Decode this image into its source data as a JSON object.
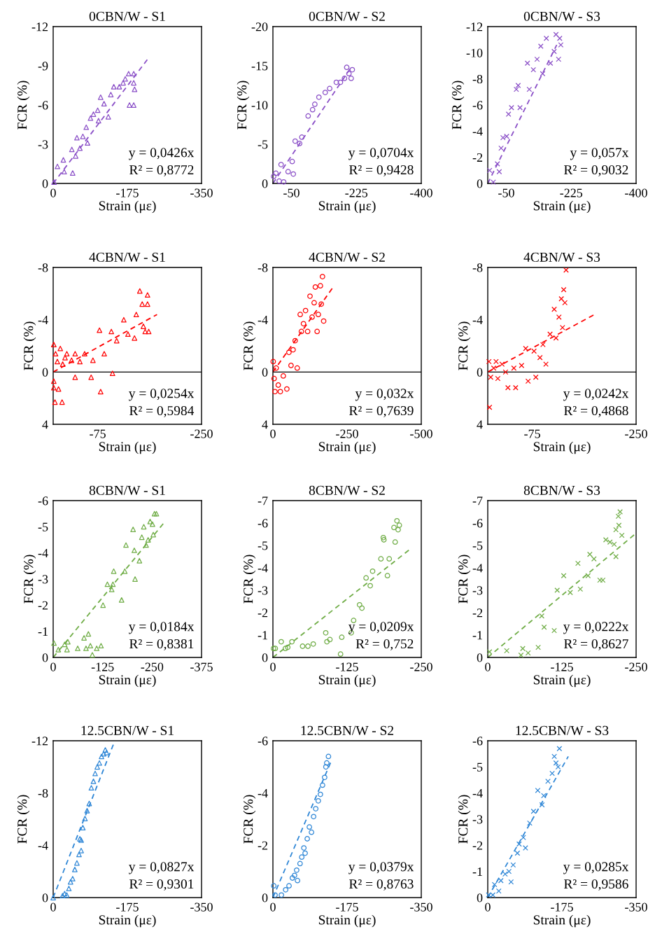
{
  "chart_data": [
    {
      "type": "scatter",
      "title": "0CBN/W - S1",
      "xlabel": "Strain (με)",
      "ylabel": "FCR (%)",
      "xlim": [
        0,
        -350
      ],
      "xticks": [
        0,
        -175,
        -350
      ],
      "ylim": [
        0,
        -12
      ],
      "yticks": [
        0,
        -3,
        -6,
        -9,
        -12
      ],
      "grid": false,
      "series": [
        {
          "type": "scatter",
          "marker": "triangle",
          "color": "#8a4fc7",
          "x": [
            -2,
            -10,
            -24,
            -26,
            -44,
            -46,
            -53,
            -56,
            -63,
            -70,
            -78,
            -81,
            -88,
            -95,
            -105,
            -107,
            -112,
            -120,
            -130,
            -136,
            -143,
            -156,
            -165,
            -170,
            -178,
            -180,
            -190,
            -190,
            -190,
            -192
          ],
          "values": [
            -0.1,
            -1.3,
            -1.8,
            -0.9,
            -2.6,
            -0.8,
            -2.1,
            -3.5,
            -2.7,
            -3.6,
            -4.3,
            -3.1,
            -5.0,
            -5.3,
            -5.6,
            -4.8,
            -6.6,
            -6.1,
            -5.1,
            -6.8,
            -7.4,
            -7.4,
            -7.7,
            -8.0,
            -8.4,
            -6.0,
            -7.7,
            -6.0,
            -8.4,
            -7.2
          ]
        },
        {
          "type": "line",
          "line_style": "dashed",
          "color": "#8a4fc7",
          "x": [
            0,
            -225
          ],
          "values": [
            0,
            -9.6
          ]
        }
      ],
      "annotations": [
        "y = 0,0426x",
        "R² = 0,8772"
      ]
    },
    {
      "type": "scatter",
      "title": "0CBN/W - S2",
      "xlabel": "Strain (με)",
      "ylabel": "FCR (%)",
      "xlim": [
        0,
        -400
      ],
      "xticks": [
        -50,
        -225,
        -400
      ],
      "ylim": [
        0,
        -20
      ],
      "yticks": [
        0,
        -5,
        -10,
        -15,
        -20
      ],
      "grid": false,
      "series": [
        {
          "type": "scatter",
          "marker": "circle",
          "color": "#8a4fc7",
          "x": [
            -2,
            -8,
            -17,
            -22,
            -29,
            -41,
            -52,
            -55,
            -60,
            -72,
            -78,
            -95,
            -107,
            -113,
            -124,
            -141,
            -153,
            -171,
            -182,
            -193,
            -199,
            -205,
            -211,
            -214
          ],
          "values": [
            -0.9,
            -1.3,
            -0.3,
            -2.4,
            -0.2,
            -1.5,
            -2.8,
            -1.2,
            -5.4,
            -5.1,
            -5.9,
            -8.6,
            -9.4,
            -10.1,
            -11.0,
            -11.6,
            -12.1,
            -12.9,
            -12.9,
            -13.4,
            -14.8,
            -14.0,
            -13.4,
            -14.5
          ]
        },
        {
          "type": "line",
          "line_style": "dashed",
          "color": "#8a4fc7",
          "x": [
            0,
            -212
          ],
          "values": [
            0,
            -14.9
          ]
        }
      ],
      "annotations": [
        "y = 0,0704x",
        "R² = 0,9428"
      ]
    },
    {
      "type": "scatter",
      "title": "0CBN/W - S3",
      "xlabel": "Strain (με)",
      "ylabel": "FCR (%)",
      "xlim": [
        0,
        -400
      ],
      "xticks": [
        -50,
        -225,
        -400
      ],
      "ylim": [
        0,
        -12
      ],
      "yticks": [
        0,
        -2,
        -4,
        -6,
        -8,
        -10,
        -12
      ],
      "grid": false,
      "series": [
        {
          "type": "scatter",
          "marker": "cross",
          "color": "#8a4fc7",
          "x": [
            -5,
            -15,
            -26,
            -31,
            -36,
            -41,
            -51,
            -56,
            -64,
            -77,
            -82,
            -87,
            -107,
            -112,
            -123,
            -133,
            -143,
            -148,
            -158,
            -169,
            -179,
            -184,
            -191,
            -194,
            -197
          ],
          "values": [
            -1.0,
            -0.1,
            -1.5,
            -0.9,
            -2.7,
            -3.5,
            -3.6,
            -5.3,
            -5.8,
            -7.2,
            -7.5,
            -5.8,
            -9.2,
            -7.2,
            -8.7,
            -9.5,
            -10.5,
            -8.4,
            -11.1,
            -9.2,
            -10.1,
            -11.4,
            -9.5,
            -11.1,
            -10.6
          ]
        },
        {
          "type": "line",
          "line_style": "dashed",
          "color": "#8a4fc7",
          "x": [
            0,
            -186
          ],
          "values": [
            0,
            -10.6
          ]
        }
      ],
      "annotations": [
        "y = 0,057x",
        "R² = 0,9032"
      ]
    },
    {
      "type": "scatter",
      "title": "4CBN/W - S1",
      "xlabel": "Strain (με)",
      "ylabel": "FCR (%)",
      "xlim": [
        0,
        -250
      ],
      "xticks": [
        -75,
        -250
      ],
      "ylim": [
        4,
        -8
      ],
      "yticks": [
        4,
        0,
        -4,
        -8
      ],
      "grid": false,
      "ref_lines": [
        {
          "axis": "y",
          "value": 0,
          "color": "#000000"
        }
      ],
      "series": [
        {
          "type": "scatter",
          "marker": "triangle",
          "color": "#ff0000",
          "x": [
            -1,
            -1,
            -1,
            -3,
            -4,
            -7,
            -9,
            -12,
            -15,
            -16,
            -20,
            -23,
            -31,
            -37,
            -37,
            -45,
            -53,
            -64,
            -67,
            -78,
            -80,
            -86,
            -98,
            -100,
            -107,
            -119,
            -126,
            -137,
            -140,
            -146,
            -150,
            -152,
            -155,
            -159,
            -159,
            -161
          ],
          "values": [
            -2.1,
            0.7,
            1.2,
            2.3,
            -1.4,
            -0.8,
            1.3,
            -1.8,
            2.3,
            -0.6,
            -1.1,
            -1.4,
            -0.9,
            -1.4,
            0.4,
            -0.8,
            -1.4,
            0.4,
            -0.9,
            -3.2,
            1.5,
            -1.4,
            -3.1,
            0.1,
            -2.4,
            -4.0,
            -2.9,
            -2.6,
            -4.4,
            -6.2,
            -5.2,
            -3.5,
            -3.1,
            -5.9,
            -5.2,
            -3.1
          ]
        },
        {
          "type": "line",
          "line_style": "dashed",
          "color": "#ff0000",
          "x": [
            0,
            -175
          ],
          "values": [
            0,
            -4.4
          ]
        }
      ],
      "annotations": [
        "y = 0,0254x",
        "R² = 0,5984"
      ]
    },
    {
      "type": "scatter",
      "title": "4CBN/W - S2",
      "xlabel": "Strain (με)",
      "ylabel": "FCR (%)",
      "xlim": [
        0,
        -500
      ],
      "xticks": [
        0,
        -250,
        -500
      ],
      "ylim": [
        4,
        -8
      ],
      "yticks": [
        4,
        0,
        -4,
        -8
      ],
      "grid": false,
      "ref_lines": [
        {
          "axis": "y",
          "value": 0,
          "color": "#000000"
        }
      ],
      "series": [
        {
          "type": "scatter",
          "marker": "circle",
          "color": "#ff0000",
          "x": [
            -1,
            -4,
            -7,
            -11,
            -18,
            -25,
            -35,
            -47,
            -54,
            -61,
            -68,
            -75,
            -82,
            -92,
            -96,
            -103,
            -110,
            -117,
            -125,
            -132,
            -139,
            -143,
            -149,
            -153,
            -160,
            -163,
            -167,
            -171
          ],
          "values": [
            -0.8,
            0.5,
            1.5,
            -0.3,
            1.0,
            1.5,
            0.3,
            1.3,
            -1.5,
            -0.5,
            -1.7,
            -2.4,
            -0.3,
            -4.4,
            -3.1,
            -3.7,
            -4.7,
            -3.1,
            -5.8,
            -4.2,
            -5.3,
            -6.5,
            -3.1,
            -4.4,
            -6.6,
            -5.2,
            -7.3,
            -3.9
          ]
        },
        {
          "type": "line",
          "line_style": "dashed",
          "color": "#ff0000",
          "x": [
            0,
            -200
          ],
          "values": [
            0,
            -6.4
          ]
        }
      ],
      "annotations": [
        "y = 0,032x",
        "R² = 0,7639"
      ]
    },
    {
      "type": "scatter",
      "title": "4CBN/W - S3",
      "xlabel": "Strain (με)",
      "ylabel": "FCR (%)",
      "xlim": [
        0,
        -250
      ],
      "xticks": [
        -75,
        -250
      ],
      "ylim": [
        4,
        -8
      ],
      "yticks": [
        4,
        0,
        -4,
        -8
      ],
      "grid": false,
      "ref_lines": [
        {
          "axis": "y",
          "value": 0,
          "color": "#000000"
        }
      ],
      "series": [
        {
          "type": "scatter",
          "marker": "cross",
          "color": "#ff0000",
          "x": [
            -2,
            -3,
            -5,
            -10,
            -14,
            -17,
            -24,
            -30,
            -34,
            -44,
            -47,
            -57,
            -64,
            -68,
            -78,
            -81,
            -88,
            -93,
            -98,
            -105,
            -112,
            -115,
            -120,
            -124,
            -126,
            -128,
            -130,
            -132
          ],
          "values": [
            -0.8,
            2.7,
            0.4,
            -0.3,
            -0.8,
            0.5,
            -0.6,
            0.0,
            1.2,
            -0.3,
            1.2,
            -0.5,
            -1.8,
            0.7,
            -1.6,
            0.4,
            -1.1,
            -2.1,
            -0.6,
            -2.9,
            -4.8,
            -2.6,
            -4.2,
            -5.6,
            -3.4,
            -6.3,
            -5.3,
            -7.8
          ]
        },
        {
          "type": "line",
          "line_style": "dashed",
          "color": "#ff0000",
          "x": [
            0,
            -180
          ],
          "values": [
            0,
            -4.4
          ]
        }
      ],
      "annotations": [
        "y = 0,0242x",
        "R² = 0,4868"
      ]
    },
    {
      "type": "scatter",
      "title": "8CBN/W - S1",
      "xlabel": "Strain (με)",
      "ylabel": "FCR (%)",
      "xlim": [
        0,
        -375
      ],
      "xticks": [
        0,
        -125,
        -250,
        -375
      ],
      "ylim": [
        0,
        -6
      ],
      "yticks": [
        0,
        -1,
        -2,
        -3,
        -4,
        -5,
        -6
      ],
      "grid": false,
      "series": [
        {
          "type": "scatter",
          "marker": "triangle",
          "color": "#70ad47",
          "x": [
            -2,
            -13,
            -29,
            -35,
            -37,
            -62,
            -78,
            -83,
            -89,
            -94,
            -99,
            -110,
            -121,
            -126,
            -137,
            -148,
            -153,
            -151,
            -173,
            -181,
            -184,
            -202,
            -205,
            -207,
            -218,
            -224,
            -229,
            -235,
            -240,
            -245,
            -251,
            -253,
            -256,
            -261
          ],
          "values": [
            -0.55,
            -0.3,
            -0.5,
            -0.3,
            -0.6,
            -0.35,
            -0.75,
            -0.35,
            -0.9,
            -0.45,
            -0.1,
            -0.35,
            -0.45,
            -2.0,
            -2.8,
            -2.6,
            -3.3,
            -2.8,
            -2.2,
            -3.3,
            -4.3,
            -4.9,
            -4.1,
            -3.0,
            -3.7,
            -4.6,
            -5.0,
            -4.3,
            -4.5,
            -5.2,
            -5.1,
            -4.7,
            -5.5,
            -5.5
          ]
        },
        {
          "type": "line",
          "line_style": "dashed",
          "color": "#70ad47",
          "x": [
            0,
            -280
          ],
          "values": [
            0,
            -5.15
          ]
        }
      ],
      "annotations": [
        "y = 0,0184x",
        "R² = 0,8381"
      ]
    },
    {
      "type": "scatter",
      "title": "8CBN/W - S2",
      "xlabel": "Strain (με)",
      "ylabel": "FCR (%)",
      "xlim": [
        0,
        -250
      ],
      "xticks": [
        0,
        -125,
        -250
      ],
      "ylim": [
        0,
        -7
      ],
      "yticks": [
        0,
        -1,
        -2,
        -3,
        -4,
        -5,
        -6,
        -7
      ],
      "grid": false,
      "series": [
        {
          "type": "scatter",
          "marker": "circle",
          "color": "#70ad47",
          "x": [
            -1,
            -4,
            -14,
            -21,
            -25,
            -32,
            -50,
            -59,
            -68,
            -89,
            -91,
            -96,
            -114,
            -116,
            -132,
            -136,
            -146,
            -150,
            -157,
            -164,
            -168,
            -182,
            -186,
            -187,
            -193,
            -196,
            -204,
            -206,
            -209,
            -211,
            -213
          ],
          "values": [
            -0.4,
            -0.4,
            -0.7,
            -0.4,
            -0.45,
            -0.7,
            -0.5,
            -0.5,
            -0.6,
            -1.1,
            -0.7,
            -0.8,
            -0.15,
            -0.9,
            -1.1,
            -1.65,
            -2.35,
            -2.2,
            -3.55,
            -3.2,
            -3.85,
            -4.4,
            -5.35,
            -5.25,
            -3.65,
            -4.4,
            -5.8,
            -5.15,
            -6.1,
            -5.7,
            -5.9
          ]
        },
        {
          "type": "line",
          "line_style": "dashed",
          "color": "#70ad47",
          "x": [
            0,
            -233
          ],
          "values": [
            0,
            -4.87
          ]
        }
      ],
      "annotations": [
        "y = 0,0209x",
        "R² = 0,752"
      ]
    },
    {
      "type": "scatter",
      "title": "8CBN/W - S3",
      "xlabel": "Strain (με)",
      "ylabel": "FCR (%)",
      "xlim": [
        0,
        -250
      ],
      "xticks": [
        0,
        -125,
        -250
      ],
      "ylim": [
        0,
        -7
      ],
      "yticks": [
        0,
        -1,
        -2,
        -3,
        -4,
        -5,
        -6,
        -7
      ],
      "grid": false,
      "series": [
        {
          "type": "scatter",
          "marker": "cross",
          "color": "#70ad47",
          "x": [
            -3,
            -32,
            -56,
            -59,
            -68,
            -85,
            -91,
            -95,
            -112,
            -117,
            -128,
            -139,
            -152,
            -156,
            -169,
            -172,
            -179,
            -189,
            -194,
            -199,
            -206,
            -213,
            -216,
            -216,
            -220,
            -221,
            -223,
            -226
          ],
          "values": [
            -0.25,
            -0.3,
            -0.1,
            -0.4,
            -0.2,
            -0.45,
            -1.85,
            -1.35,
            -1.2,
            -3.0,
            -3.65,
            -2.9,
            -4.2,
            -3.05,
            -3.65,
            -4.6,
            -4.4,
            -3.45,
            -3.45,
            -5.25,
            -5.15,
            -5.05,
            -4.5,
            -5.7,
            -6.3,
            -5.9,
            -6.5,
            -5.45
          ]
        },
        {
          "type": "line",
          "line_style": "dashed",
          "color": "#70ad47",
          "x": [
            0,
            -248
          ],
          "values": [
            0,
            -5.5
          ]
        }
      ],
      "annotations": [
        "y = 0,0222x",
        "R² = 0,8627"
      ]
    },
    {
      "type": "scatter",
      "title": "12.5CBN/W - S1",
      "xlabel": "Strain (με)",
      "ylabel": "FCR (%)",
      "xlim": [
        0,
        -350
      ],
      "xticks": [
        0,
        -175,
        -350
      ],
      "ylim": [
        0,
        -12
      ],
      "yticks": [
        0,
        -4,
        -8,
        -12
      ],
      "grid": false,
      "series": [
        {
          "type": "scatter",
          "marker": "triangle",
          "color": "#2e86d6",
          "x": [
            0,
            -22,
            -27,
            -32,
            -37,
            -41,
            -46,
            -51,
            -56,
            -61,
            -66,
            -63,
            -66,
            -70,
            -75,
            -80,
            -85,
            -90,
            -95,
            -99,
            -104,
            -109,
            -114,
            -119,
            -123,
            -126
          ],
          "values": [
            0,
            -0.15,
            -0.3,
            -0.2,
            -0.7,
            -1.2,
            -1.45,
            -2.15,
            -2.65,
            -3.3,
            -3.6,
            -4.5,
            -4.4,
            -5.35,
            -6.05,
            -6.65,
            -7.2,
            -8.4,
            -8.9,
            -9.5,
            -10.0,
            -10.3,
            -10.8,
            -11.0,
            -11.3,
            -11.1
          ]
        },
        {
          "type": "line",
          "line_style": "dashed",
          "color": "#2e86d6",
          "x": [
            0,
            -143
          ],
          "values": [
            0,
            -11.8
          ]
        }
      ],
      "annotations": [
        "y = 0,0827x",
        "R² = 0,9301"
      ]
    },
    {
      "type": "scatter",
      "title": "12.5CBN/W - S2",
      "xlabel": "Strain (με)",
      "ylabel": "FCR (%)",
      "xlim": [
        0,
        -350
      ],
      "xticks": [
        0,
        -175,
        -350
      ],
      "ylim": [
        0,
        -6
      ],
      "yticks": [
        0,
        -2,
        -4,
        -6
      ],
      "grid": false,
      "series": [
        {
          "type": "scatter",
          "marker": "circle",
          "color": "#2e86d6",
          "x": [
            -2,
            -5,
            -20,
            -30,
            -38,
            -46,
            -51,
            -56,
            -58,
            -64,
            -68,
            -73,
            -76,
            -81,
            -86,
            -91,
            -96,
            -101,
            -107,
            -112,
            -117,
            -122,
            -125,
            -127,
            -131
          ],
          "values": [
            -0.45,
            -0.1,
            -0.1,
            -0.3,
            -0.45,
            -0.75,
            -0.85,
            -1.05,
            -0.65,
            -1.3,
            -1.55,
            -1.9,
            -1.7,
            -2.25,
            -2.7,
            -2.5,
            -3.1,
            -3.4,
            -3.7,
            -3.95,
            -4.3,
            -4.6,
            -5.0,
            -5.15,
            -5.4
          ]
        },
        {
          "type": "line",
          "line_style": "dashed",
          "color": "#2e86d6",
          "x": [
            0,
            -137
          ],
          "values": [
            0,
            -5.2
          ]
        }
      ],
      "annotations": [
        "y = 0,0379x",
        "R² = 0,8763"
      ]
    },
    {
      "type": "scatter",
      "title": "12.5CBN/W - S3",
      "xlabel": "Strain (με)",
      "ylabel": "FCR (%)",
      "xlim": [
        0,
        -350
      ],
      "xticks": [
        0,
        -175,
        -350
      ],
      "ylim": [
        0,
        -6
      ],
      "yticks": [
        0,
        -1,
        -2,
        -3,
        -4,
        -5,
        -6
      ],
      "grid": false,
      "series": [
        {
          "type": "scatter",
          "marker": "cross",
          "color": "#2e86d6",
          "x": [
            -2,
            -12,
            -16,
            -26,
            -31,
            -41,
            -50,
            -55,
            -60,
            -70,
            -74,
            -84,
            -89,
            -99,
            -108,
            -118,
            -128,
            -132,
            -142,
            -152,
            -157,
            -161,
            -166,
            -169
          ],
          "values": [
            -0.1,
            -0.1,
            -0.5,
            -0.25,
            -0.65,
            -0.9,
            -1.0,
            -0.6,
            -1.25,
            -1.7,
            -2.05,
            -2.3,
            -1.9,
            -2.85,
            -3.3,
            -4.1,
            -3.55,
            -3.9,
            -4.45,
            -4.75,
            -5.4,
            -5.15,
            -5.0,
            -5.7
          ]
        },
        {
          "type": "line",
          "line_style": "dashed",
          "color": "#2e86d6",
          "x": [
            0,
            -190
          ],
          "values": [
            0,
            -5.4
          ]
        }
      ],
      "annotations": [
        "y = 0,0285x",
        "R² = 0,9586"
      ]
    }
  ]
}
